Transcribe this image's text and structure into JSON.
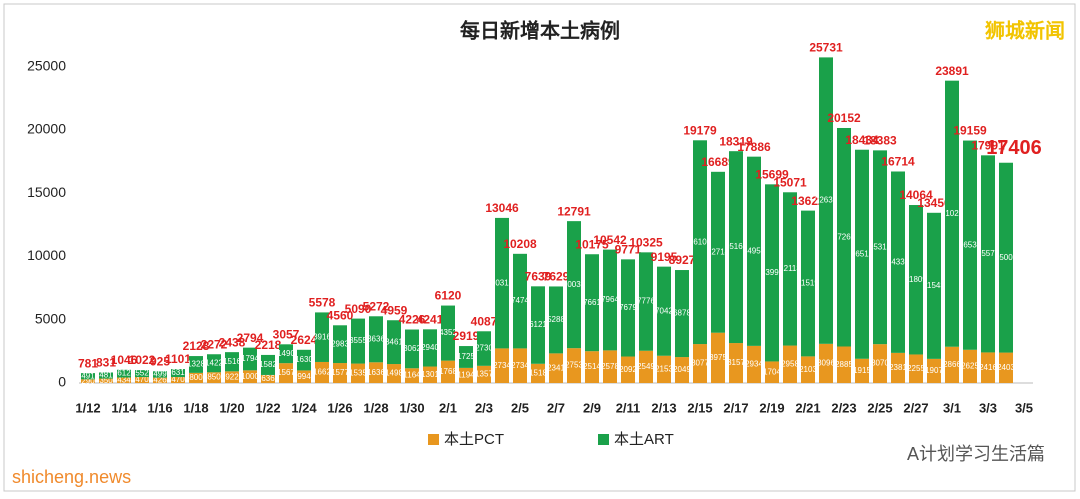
{
  "chart_data": {
    "type": "stacked_bar",
    "title": "每日新增本土病例",
    "categories": [
      "1/12",
      null,
      "1/14",
      null,
      "1/16",
      null,
      "1/18",
      null,
      "1/20",
      null,
      "1/22",
      null,
      "1/24",
      null,
      "1/26",
      null,
      "1/28",
      null,
      "1/30",
      null,
      "2/1",
      null,
      "2/3",
      null,
      "2/5",
      null,
      "2/7",
      null,
      "2/9",
      null,
      "2/11",
      null,
      "2/13",
      null,
      "2/15",
      null,
      "2/17",
      null,
      "2/19",
      null,
      "2/21",
      null,
      "2/23",
      null,
      "2/25",
      null,
      "2/27",
      null,
      "3/1",
      null,
      "3/3",
      null,
      "3/5"
    ],
    "series": [
      {
        "name": "本土PCT",
        "color": "#e8971f",
        "values": [
          290,
          350,
          434,
          470,
          426,
          470,
          800,
          850,
          922,
          1000,
          636,
          1567,
          994,
          1662,
          1577,
          1535,
          1636,
          1498,
          1164,
          1301,
          1768,
          1194,
          1357,
          2734,
          2734,
          1518,
          2341,
          2753,
          2514,
          2578,
          2092,
          2549,
          2153,
          2049,
          3077,
          3975,
          3157,
          2934,
          1704,
          2958,
          2103,
          3096,
          2885,
          1915,
          3070,
          2381,
          2255,
          1907,
          2866,
          2625,
          2416,
          2403,
          null
        ]
      },
      {
        "name": "本土ART",
        "color": "#1aa14a",
        "values": [
          491,
          481,
          612,
          552,
          499,
          631,
          1328,
          1422,
          1516,
          1794,
          1582,
          1490,
          1630,
          3916,
          2983,
          3555,
          3636,
          3461,
          3062,
          2940,
          4352,
          1725,
          2730,
          10312,
          7474,
          6121,
          5288,
          10038,
          7661,
          7964,
          7679,
          7776,
          7042,
          6878,
          16102,
          12714,
          15162,
          14952,
          13995,
          12113,
          11519,
          22635,
          17267,
          16519,
          15313,
          14333,
          11809,
          11543,
          21025,
          16534,
          15575,
          15003,
          null
        ]
      }
    ],
    "totals": [
      781,
      831,
      1046,
      1022,
      925,
      1101,
      2128,
      2272,
      2438,
      2794,
      2218,
      3057,
      2624,
      5578,
      4560,
      5090,
      5272,
      4959,
      4226,
      4241,
      6120,
      2919,
      4087,
      13046,
      10208,
      7639,
      7629,
      12791,
      10175,
      10542,
      9771,
      10325,
      9195,
      8927,
      19179,
      16689,
      18319,
      17886,
      15699,
      15071,
      13622,
      25731,
      20152,
      18434,
      18383,
      16714,
      14064,
      13450,
      23891,
      19159,
      17991,
      17406,
      null
    ],
    "ylim": [
      0,
      27500
    ],
    "yticks": [
      0,
      5000,
      10000,
      15000,
      20000,
      25000
    ],
    "grid": false,
    "watermarks": [
      "狮城新闻",
      "A计划学习生活篇",
      "shicheng.news"
    ]
  }
}
